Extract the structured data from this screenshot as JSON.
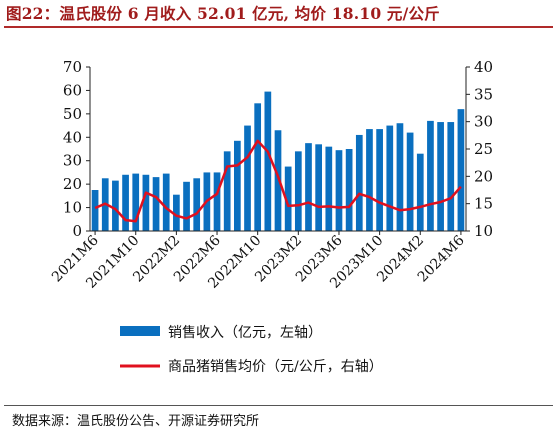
{
  "title": "图22：温氏股份 6 月收入 52.01 亿元, 均价 18.10 元/公斤",
  "source": "数据来源：温氏股份公告、开源证券研究所",
  "colors": {
    "bar": "#0a6fbf",
    "line": "#e0101e",
    "title": "#a01c1c"
  },
  "chart_data": {
    "type": "bar+line",
    "title": "图22：温氏股份 6 月收入 52.01 亿元, 均价 18.10 元/公斤",
    "categories": [
      "2021M6",
      "2021M7",
      "2021M8",
      "2021M9",
      "2021M10",
      "2021M11",
      "2021M12",
      "2022M1",
      "2022M2",
      "2022M3",
      "2022M4",
      "2022M5",
      "2022M6",
      "2022M7",
      "2022M8",
      "2022M9",
      "2022M10",
      "2022M11",
      "2022M12",
      "2023M1",
      "2023M2",
      "2023M3",
      "2023M4",
      "2023M5",
      "2023M6",
      "2023M7",
      "2023M8",
      "2023M9",
      "2023M10",
      "2023M11",
      "2023M12",
      "2024M1",
      "2024M2",
      "2024M3",
      "2024M4",
      "2024M5",
      "2024M6"
    ],
    "x_tick_labels": [
      "2021M6",
      "2021M10",
      "2022M2",
      "2022M6",
      "2022M10",
      "2023M2",
      "2023M6",
      "2023M10",
      "2024M2",
      "2024M6"
    ],
    "series": [
      {
        "name": "销售收入（亿元，左轴）",
        "type": "bar",
        "axis": "left",
        "values": [
          17.5,
          22.5,
          21.5,
          24,
          24.5,
          24,
          23,
          24.5,
          15.5,
          21,
          22.5,
          25,
          25,
          34,
          38.5,
          45,
          54.5,
          59.5,
          43,
          27.5,
          34,
          37.5,
          37,
          36,
          34.5,
          35,
          41,
          43.5,
          43.5,
          45,
          46,
          42,
          33,
          47,
          46.5,
          46.5,
          52.01
        ]
      },
      {
        "name": "商品猪销售均价（元/公斤，右轴）",
        "type": "line",
        "axis": "right",
        "values": [
          14.2,
          15.0,
          14.0,
          12.0,
          11.8,
          17.0,
          16.2,
          14.2,
          12.8,
          12.3,
          13.2,
          15.5,
          16.8,
          21.8,
          22.0,
          23.5,
          26.5,
          24.5,
          20.0,
          14.6,
          14.7,
          15.2,
          14.4,
          14.5,
          14.3,
          14.4,
          16.8,
          16.2,
          15.2,
          14.5,
          13.8,
          14.0,
          14.4,
          14.9,
          15.3,
          16.0,
          18.1
        ]
      }
    ],
    "y_left": {
      "min": 0,
      "max": 70,
      "ticks": [
        0,
        10,
        20,
        30,
        40,
        50,
        60,
        70
      ]
    },
    "y_right": {
      "min": 10,
      "max": 40,
      "ticks": [
        10,
        15,
        20,
        25,
        30,
        35,
        40
      ]
    },
    "legend_placement": "bottom",
    "grid": false
  }
}
